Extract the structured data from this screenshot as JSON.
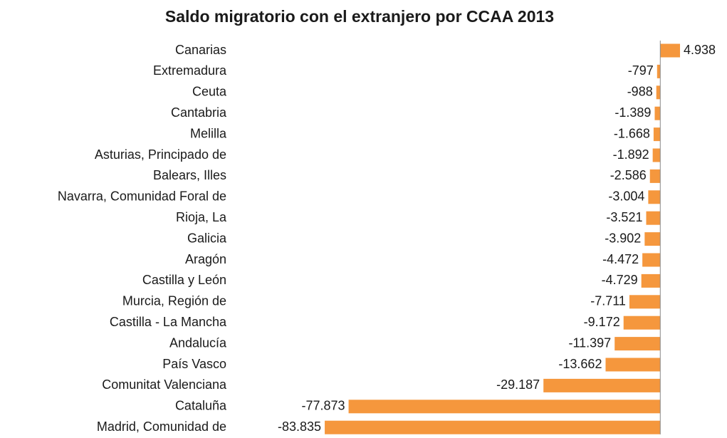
{
  "chart_data": {
    "type": "hbar",
    "title": "Saldo migratorio con el extranjero por CCAA 2013",
    "categories": [
      "Canarias",
      "Extremadura",
      "Ceuta",
      "Cantabria",
      "Melilla",
      "Asturias, Principado de",
      "Balears, Illes",
      "Navarra, Comunidad Foral de",
      "Rioja, La",
      "Galicia",
      "Aragón",
      "Castilla y León",
      "Murcia, Región de",
      "Castilla - La Mancha",
      "Andalucía",
      "País Vasco",
      "Comunitat Valenciana",
      "Cataluña",
      "Madrid, Comunidad de"
    ],
    "values": [
      4938,
      -797,
      -988,
      -1389,
      -1668,
      -1892,
      -2586,
      -3004,
      -3521,
      -3902,
      -4472,
      -4729,
      -7711,
      -9172,
      -11397,
      -13662,
      -29187,
      -77873,
      -83835
    ],
    "value_labels": [
      "4.938",
      "-797",
      "-988",
      "-1.389",
      "-1.668",
      "-1.892",
      "-2.586",
      "-3.004",
      "-3.521",
      "-3.902",
      "-4.472",
      "-4.729",
      "-7.711",
      "-9.172",
      "-11.397",
      "-13.662",
      "-29.187",
      "-77.873",
      "-83.835"
    ],
    "color": "#f5973d",
    "xlim": [
      -85000,
      6000
    ]
  }
}
